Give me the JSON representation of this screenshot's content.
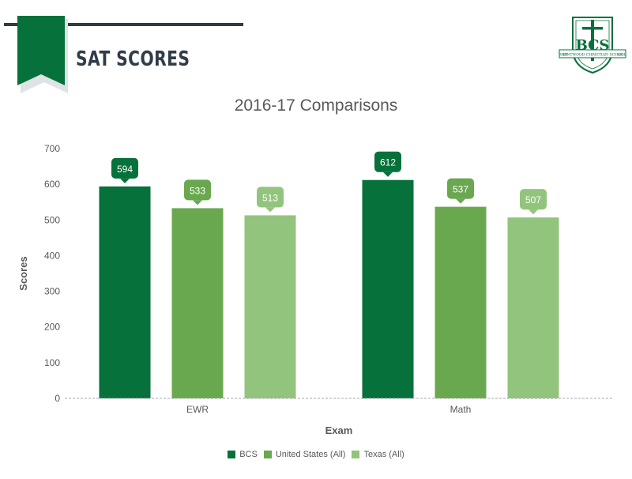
{
  "header": {
    "title": "SAT SCORES",
    "logo_letters": "BCS",
    "logo_banner_text": "BRENTWOOD CHRISTIAN SCHOOL",
    "logo_year_left": "19",
    "logo_year_right": "63"
  },
  "colors": {
    "brand_green": "#06713b",
    "header_dark": "#2f3b45",
    "ribbon_shadow": "#dfe3e6"
  },
  "chart_data": {
    "type": "bar",
    "title": "2016-17 Comparisons",
    "xlabel": "Exam",
    "ylabel": "Scores",
    "ylim": [
      0,
      700
    ],
    "yticks": [
      0,
      100,
      200,
      300,
      400,
      500,
      600,
      700
    ],
    "categories": [
      "EWR",
      "Math"
    ],
    "series": [
      {
        "name": "BCS",
        "color": "#06713b",
        "values": [
          594,
          612
        ]
      },
      {
        "name": "United States (All)",
        "color": "#6aa84f",
        "values": [
          533,
          537
        ]
      },
      {
        "name": "Texas (All)",
        "color": "#93c47d",
        "values": [
          513,
          507
        ]
      }
    ],
    "data_labels": true,
    "grid": false,
    "legend": "bottom-center"
  }
}
